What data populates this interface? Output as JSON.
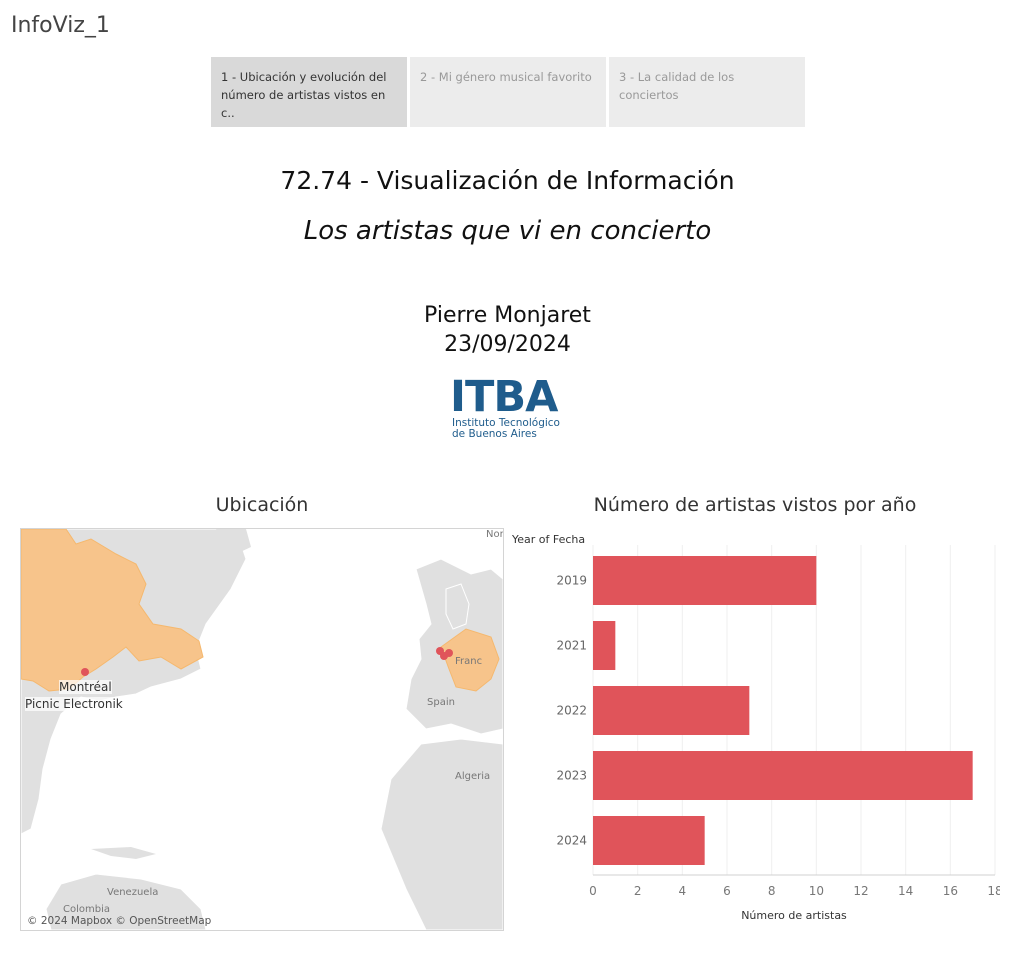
{
  "app": {
    "title": "InfoViz_1"
  },
  "tabs": [
    {
      "label": "1 - Ubicación y evolución del número de artistas vistos en c..",
      "active": true
    },
    {
      "label": "2 - Mi género musical favorito",
      "active": false
    },
    {
      "label": "3 - La calidad de los conciertos",
      "active": false
    }
  ],
  "header": {
    "course": "72.74 - Visualización de Información",
    "subtitle": "Los artistas que vi en concierto",
    "author": "Pierre Monjaret",
    "date": "23/09/2024"
  },
  "logo": {
    "mark": "ITBA",
    "line1": "Instituto Tecnológico",
    "line2": "de Buenos Aires",
    "color": "#1f5c8c"
  },
  "map": {
    "title": "Ubicación",
    "place_label": "Montréal",
    "event_label": "Picnic Electronik",
    "geo_labels": [
      "Spain",
      "Algeria",
      "Venezuela",
      "Colombia",
      "Franc",
      "Nor"
    ],
    "attribution": "© 2024 Mapbox © OpenStreetMap",
    "highlight_color": "#f7c48b",
    "point_color": "#e0545a"
  },
  "chart_data": {
    "type": "bar",
    "title": "Número de artistas vistos por año",
    "ylabel": "Year of Fecha",
    "xlabel": "Número de artistas",
    "categories": [
      "2019",
      "2021",
      "2022",
      "2023",
      "2024"
    ],
    "values": [
      10,
      1,
      7,
      17,
      5
    ],
    "xlim": [
      0,
      18
    ],
    "xticks": [
      0,
      2,
      4,
      6,
      8,
      10,
      12,
      14,
      16,
      18
    ],
    "orientation": "horizontal",
    "grid": true,
    "bar_color": "#e0545a"
  }
}
